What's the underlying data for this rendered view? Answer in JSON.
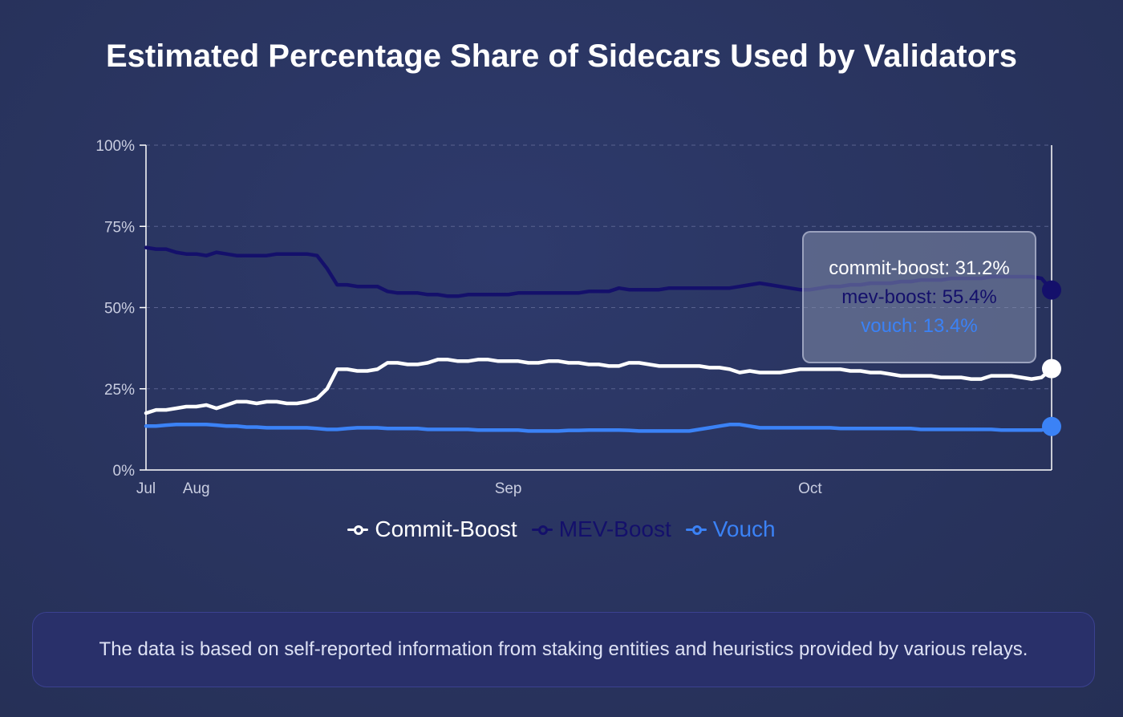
{
  "title": "Estimated Percentage Share of Sidecars Used by Validators",
  "colors": {
    "commit_boost": "#ffffff",
    "mev_boost": "#14106b",
    "vouch": "#3b82f6",
    "grid": "#59628f",
    "axis": "#ffffff"
  },
  "legend": {
    "commit_boost": "Commit-Boost",
    "mev_boost": "MEV-Boost",
    "vouch": "Vouch"
  },
  "tooltip": {
    "commit_boost": "commit-boost: 31.2%",
    "mev_boost": "mev-boost: 55.4%",
    "vouch": "vouch: 13.4%"
  },
  "footer": "The data is based on self-reported information from staking entities and heuristics provided by various relays.",
  "chart_data": {
    "type": "line",
    "title": "Estimated Percentage Share of Sidecars Used by Validators",
    "xlabel": "",
    "ylabel": "",
    "ylim": [
      0,
      100
    ],
    "y_ticks": [
      "0%",
      "25%",
      "50%",
      "75%",
      "100%"
    ],
    "x_ticks": [
      {
        "day": 0,
        "label": "Jul"
      },
      {
        "day": 5,
        "label": "Aug"
      },
      {
        "day": 36,
        "label": "Sep"
      },
      {
        "day": 66,
        "label": "Oct"
      }
    ],
    "x_range": [
      0,
      90
    ],
    "x": [
      0,
      1,
      2,
      3,
      4,
      5,
      6,
      7,
      8,
      9,
      10,
      11,
      12,
      13,
      14,
      15,
      16,
      17,
      18,
      19,
      20,
      21,
      22,
      23,
      24,
      25,
      26,
      27,
      28,
      29,
      30,
      31,
      32,
      33,
      34,
      35,
      36,
      37,
      38,
      39,
      40,
      41,
      42,
      43,
      44,
      45,
      46,
      47,
      48,
      49,
      50,
      51,
      52,
      53,
      54,
      55,
      56,
      57,
      58,
      59,
      60,
      61,
      62,
      63,
      64,
      65,
      66,
      67,
      68,
      69,
      70,
      71,
      72,
      73,
      74,
      75,
      76,
      77,
      78,
      79,
      80,
      81,
      82,
      83,
      84,
      85,
      86,
      87,
      88,
      89,
      90
    ],
    "series": [
      {
        "name": "Commit-Boost",
        "color": "#ffffff",
        "values": [
          17.5,
          18.5,
          18.5,
          19,
          19.5,
          19.5,
          20,
          19,
          20,
          21,
          21,
          20.5,
          21,
          21,
          20.5,
          20.5,
          21,
          22,
          25,
          31,
          31,
          30.5,
          30.5,
          31,
          33,
          33,
          32.5,
          32.5,
          33,
          34,
          34,
          33.5,
          33.5,
          34,
          34,
          33.5,
          33.5,
          33.5,
          33,
          33,
          33.5,
          33.5,
          33,
          33,
          32.5,
          32.5,
          32,
          32,
          33,
          33,
          32.5,
          32,
          32,
          32,
          32,
          32,
          31.5,
          31.5,
          31,
          30,
          30.5,
          30,
          30,
          30,
          30.5,
          31,
          31,
          31,
          31,
          31,
          30.5,
          30.5,
          30,
          30,
          29.5,
          29,
          29,
          29,
          29,
          28.5,
          28.5,
          28.5,
          28,
          28,
          29,
          29,
          29,
          28.5,
          28,
          28.5,
          31.2
        ],
        "end_value": 31.2
      },
      {
        "name": "MEV-Boost",
        "color": "#14106b",
        "values": [
          68.5,
          68,
          68,
          67,
          66.5,
          66.5,
          66,
          67,
          66.5,
          66,
          66,
          66,
          66,
          66.5,
          66.5,
          66.5,
          66.5,
          66,
          62,
          57,
          57,
          56.5,
          56.5,
          56.5,
          55,
          54.5,
          54.5,
          54.5,
          54,
          54,
          53.5,
          53.5,
          54,
          54,
          54,
          54,
          54,
          54.5,
          54.5,
          54.5,
          54.5,
          54.5,
          54.5,
          54.5,
          55,
          55,
          55,
          56,
          55.5,
          55.5,
          55.5,
          55.5,
          56,
          56,
          56,
          56,
          56,
          56,
          56,
          56.5,
          57,
          57.5,
          57,
          56.5,
          56,
          55.5,
          55.5,
          56,
          56.5,
          56.5,
          57,
          57,
          57.5,
          57.5,
          57.5,
          58,
          58,
          58.5,
          58.5,
          58.5,
          59,
          59,
          59,
          59,
          59.5,
          59.5,
          59.5,
          59.5,
          59.5,
          59,
          55.4
        ],
        "end_value": 55.4
      },
      {
        "name": "Vouch",
        "color": "#3b82f6",
        "values": [
          13.5,
          13.5,
          13.8,
          14,
          14,
          14,
          14,
          13.8,
          13.5,
          13.5,
          13.2,
          13.2,
          13,
          13,
          13,
          13,
          13,
          12.8,
          12.5,
          12.5,
          12.8,
          13,
          13,
          13,
          12.8,
          12.8,
          12.8,
          12.8,
          12.5,
          12.5,
          12.5,
          12.5,
          12.5,
          12.3,
          12.3,
          12.3,
          12.3,
          12.3,
          12,
          12,
          12,
          12,
          12.2,
          12.2,
          12.3,
          12.3,
          12.3,
          12.3,
          12.2,
          12,
          12,
          12,
          12,
          12,
          12,
          12.5,
          13,
          13.5,
          14,
          14,
          13.5,
          13,
          13,
          13,
          13,
          13,
          13,
          13,
          13,
          12.8,
          12.8,
          12.8,
          12.8,
          12.8,
          12.8,
          12.8,
          12.8,
          12.5,
          12.5,
          12.5,
          12.5,
          12.5,
          12.5,
          12.5,
          12.5,
          12.3,
          12.3,
          12.3,
          12.3,
          12.3,
          13.4
        ],
        "end_value": 13.4
      }
    ]
  }
}
